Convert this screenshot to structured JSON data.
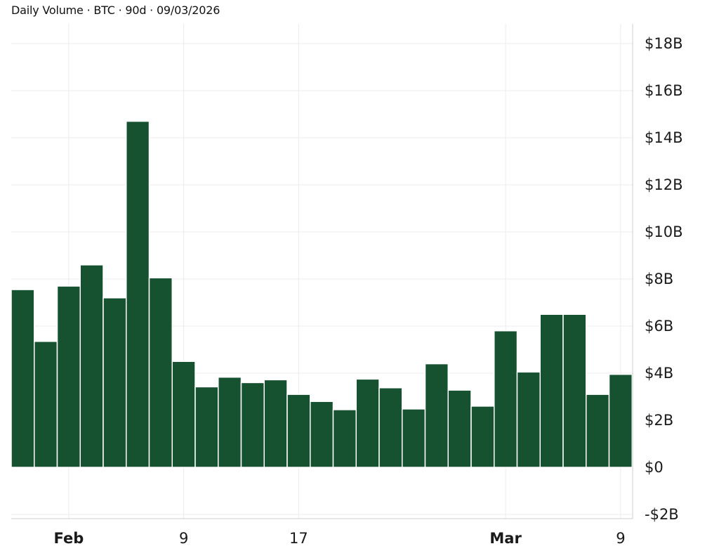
{
  "header": {
    "title": "Daily Volume · BTC · 90d · 09/03/2026"
  },
  "colors": {
    "bar": "#165230",
    "bar_edge": "#ffffff",
    "grid": "#ececec",
    "axis": "#cfcfcf",
    "text": "#1a1a1a"
  },
  "chart_data": {
    "type": "bar",
    "title": "Daily Volume · BTC · 90d · 09/03/2026",
    "xlabel": "",
    "ylabel": "",
    "y_axis_side": "right",
    "ylim": [
      -2,
      18.7
    ],
    "y_ticks": [
      -2,
      0,
      2,
      4,
      6,
      8,
      10,
      12,
      14,
      16,
      18
    ],
    "y_tick_labels": [
      "-$2B",
      "$0",
      "$2B",
      "$4B",
      "$6B",
      "$8B",
      "$10B",
      "$12B",
      "$14B",
      "$16B",
      "$18B"
    ],
    "grid": true,
    "x_tick_labels": [
      {
        "label": "Feb",
        "index": 2.5,
        "bold": true
      },
      {
        "label": "9",
        "index": 7.5,
        "bold": false
      },
      {
        "label": "17",
        "index": 12.5,
        "bold": false
      },
      {
        "label": "Mar",
        "index": 21.5,
        "bold": true
      },
      {
        "label": "9",
        "index": 26.5,
        "bold": false
      }
    ],
    "values": [
      7.55,
      5.35,
      7.7,
      8.6,
      7.2,
      14.7,
      8.05,
      4.5,
      3.42,
      3.83,
      3.6,
      3.72,
      3.1,
      2.8,
      2.45,
      3.75,
      3.38,
      2.48,
      4.4,
      3.28,
      2.6,
      5.8,
      4.05,
      6.5,
      6.5,
      3.1,
      3.95
    ]
  }
}
